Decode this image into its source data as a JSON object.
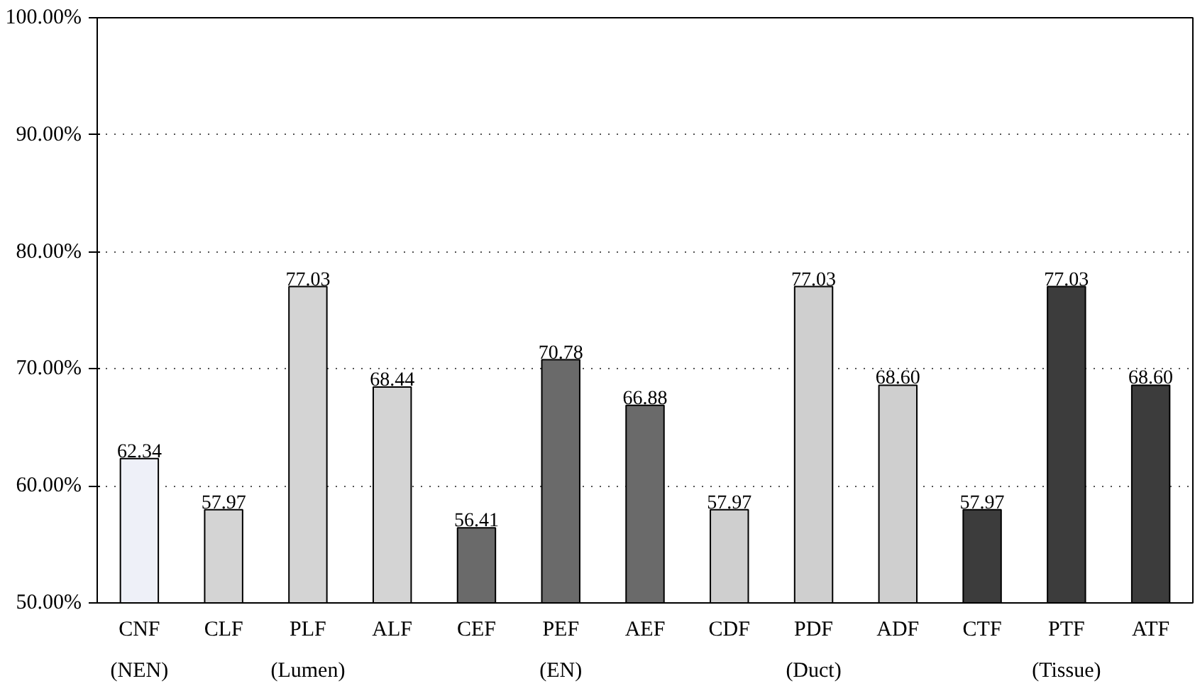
{
  "chart_data": {
    "type": "bar",
    "categories": [
      "CNF",
      "CLF",
      "PLF",
      "ALF",
      "CEF",
      "PEF",
      "AEF",
      "CDF",
      "PDF",
      "ADF",
      "CTF",
      "PTF",
      "ATF"
    ],
    "values": [
      62.34,
      57.97,
      77.03,
      68.44,
      56.41,
      70.78,
      66.88,
      57.97,
      77.03,
      68.6,
      57.97,
      77.03,
      68.6
    ],
    "value_labels": [
      "62.34",
      "57.97",
      "77.03",
      "68.44",
      "56.41",
      "70.78",
      "66.88",
      "57.97",
      "77.03",
      "68.60",
      "57.97",
      "77.03",
      "68.60"
    ],
    "colors": [
      "#eef0f8",
      "#d4d4d4",
      "#d4d4d4",
      "#d4d4d4",
      "#6a6a6a",
      "#6a6a6a",
      "#6a6a6a",
      "#cfcfcf",
      "#cfcfcf",
      "#cfcfcf",
      "#3c3c3c",
      "#3c3c3c",
      "#3c3c3c"
    ],
    "ylim": [
      50,
      100
    ],
    "yticks": [
      {
        "value": 50,
        "label": "50.00%"
      },
      {
        "value": 60,
        "label": "60.00%"
      },
      {
        "value": 70,
        "label": "70.00%"
      },
      {
        "value": 80,
        "label": "80.00%"
      },
      {
        "value": 90,
        "label": "90.00%"
      },
      {
        "value": 100,
        "label": "100.00%"
      }
    ],
    "grid": "y",
    "annotations": [
      "(NEN)",
      "(Lumen)",
      "(EN)",
      "(Duct)",
      "(Tissue)"
    ]
  }
}
